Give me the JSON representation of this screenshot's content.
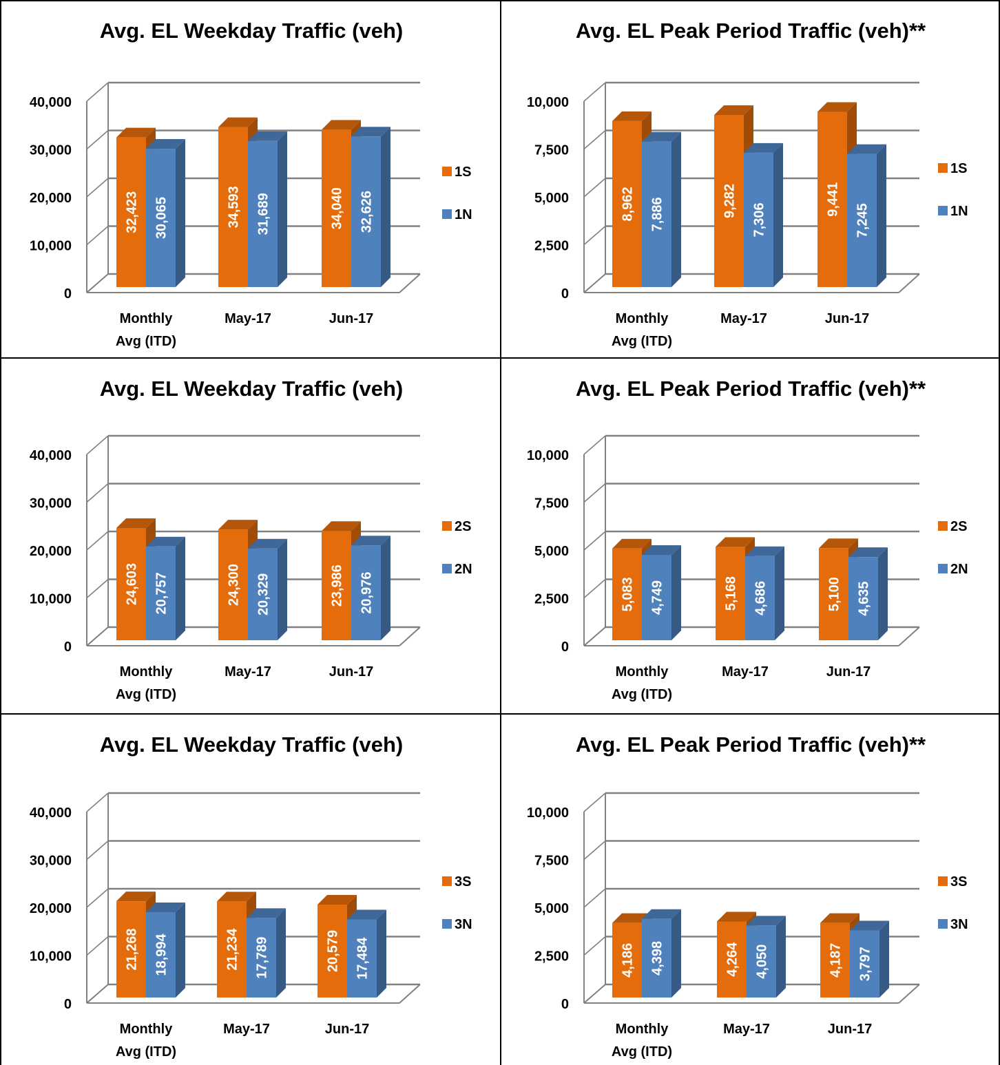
{
  "colors": {
    "south": "#E46C0A",
    "north": "#4F81BD",
    "grid": "#808080"
  },
  "chart_data": [
    {
      "type": "bar",
      "title": "Avg. EL Weekday Traffic (veh)",
      "categories": [
        "Monthly Avg (ITD)",
        "May-17",
        "Jun-17"
      ],
      "category_lines": [
        [
          "Monthly",
          "Avg (ITD)"
        ],
        [
          "May-17"
        ],
        [
          "Jun-17"
        ]
      ],
      "series": [
        {
          "name": "1S",
          "values": [
            32423,
            34593,
            34040
          ]
        },
        {
          "name": "1N",
          "values": [
            30065,
            31689,
            32626
          ]
        }
      ],
      "value_labels": [
        [
          "32,423",
          "34,593",
          "34,040"
        ],
        [
          "30,065",
          "31,689",
          "32,626"
        ]
      ],
      "ylim": [
        0,
        40000
      ],
      "yticks": [
        0,
        10000,
        20000,
        30000,
        40000
      ],
      "ytick_labels": [
        "0",
        "10,000",
        "20,000",
        "30,000",
        "40,000"
      ],
      "grid": true,
      "legend": "right"
    },
    {
      "type": "bar",
      "title": "Avg. EL Peak Period Traffic (veh)**",
      "categories": [
        "Monthly Avg (ITD)",
        "May-17",
        "Jun-17"
      ],
      "category_lines": [
        [
          "Monthly",
          "Avg (ITD)"
        ],
        [
          "May-17"
        ],
        [
          "Jun-17"
        ]
      ],
      "series": [
        {
          "name": "1S",
          "values": [
            8962,
            9282,
            9441
          ]
        },
        {
          "name": "1N",
          "values": [
            7886,
            7306,
            7245
          ]
        }
      ],
      "value_labels": [
        [
          "8,962",
          "9,282",
          "9,441"
        ],
        [
          "7,886",
          "7,306",
          "7,245"
        ]
      ],
      "ylim": [
        0,
        10000
      ],
      "yticks": [
        0,
        2500,
        5000,
        7500,
        10000
      ],
      "ytick_labels": [
        "0",
        "2,500",
        "5,000",
        "7,500",
        "10,000"
      ],
      "grid": true,
      "legend": "right"
    },
    {
      "type": "bar",
      "title": "Avg. EL Weekday Traffic (veh)",
      "categories": [
        "Monthly Avg (ITD)",
        "May-17",
        "Jun-17"
      ],
      "category_lines": [
        [
          "Monthly",
          "Avg (ITD)"
        ],
        [
          "May-17"
        ],
        [
          "Jun-17"
        ]
      ],
      "series": [
        {
          "name": "2S",
          "values": [
            24603,
            24300,
            23986
          ]
        },
        {
          "name": "2N",
          "values": [
            20757,
            20329,
            20976
          ]
        }
      ],
      "value_labels": [
        [
          "24,603",
          "24,300",
          "23,986"
        ],
        [
          "20,757",
          "20,329",
          "20,976"
        ]
      ],
      "ylim": [
        0,
        40000
      ],
      "yticks": [
        0,
        10000,
        20000,
        30000,
        40000
      ],
      "ytick_labels": [
        "0",
        "10,000",
        "20,000",
        "30,000",
        "40,000"
      ],
      "grid": true,
      "legend": "right"
    },
    {
      "type": "bar",
      "title": "Avg. EL Peak Period Traffic (veh)**",
      "categories": [
        "Monthly Avg (ITD)",
        "May-17",
        "Jun-17"
      ],
      "category_lines": [
        [
          "Monthly",
          "Avg (ITD)"
        ],
        [
          "May-17"
        ],
        [
          "Jun-17"
        ]
      ],
      "series": [
        {
          "name": "2S",
          "values": [
            5083,
            5168,
            5100
          ]
        },
        {
          "name": "2N",
          "values": [
            4749,
            4686,
            4635
          ]
        }
      ],
      "value_labels": [
        [
          "5,083",
          "5,168",
          "5,100"
        ],
        [
          "4,749",
          "4,686",
          "4,635"
        ]
      ],
      "ylim": [
        0,
        10000
      ],
      "yticks": [
        0,
        2500,
        5000,
        7500,
        10000
      ],
      "ytick_labels": [
        "0",
        "2,500",
        "5,000",
        "7,500",
        "10,000"
      ],
      "grid": true,
      "legend": "right"
    },
    {
      "type": "bar",
      "title": "Avg. EL Weekday Traffic (veh)",
      "categories": [
        "Monthly Avg (ITD)",
        "May-17",
        "Jun-17"
      ],
      "category_lines": [
        [
          "Monthly",
          "Avg (ITD)"
        ],
        [
          "May-17"
        ],
        [
          "Jun-17"
        ]
      ],
      "series": [
        {
          "name": "3S",
          "values": [
            21268,
            21234,
            20579
          ]
        },
        {
          "name": "3N",
          "values": [
            18994,
            17789,
            17484
          ]
        }
      ],
      "value_labels": [
        [
          "21,268",
          "21,234",
          "20,579"
        ],
        [
          "18,994",
          "17,789",
          "17,484"
        ]
      ],
      "ylim": [
        0,
        40000
      ],
      "yticks": [
        0,
        10000,
        20000,
        30000,
        40000
      ],
      "ytick_labels": [
        "0",
        "10,000",
        "20,000",
        "30,000",
        "40,000"
      ],
      "grid": true,
      "legend": "right"
    },
    {
      "type": "bar",
      "title": "Avg. EL Peak Period Traffic (veh)**",
      "categories": [
        "Monthly Avg (ITD)",
        "May-17",
        "Jun-17"
      ],
      "category_lines": [
        [
          "Monthly",
          "Avg (ITD)"
        ],
        [
          "May-17"
        ],
        [
          "Jun-17"
        ]
      ],
      "series": [
        {
          "name": "3S",
          "values": [
            4186,
            4264,
            4187
          ]
        },
        {
          "name": "3N",
          "values": [
            4398,
            4050,
            3797
          ]
        }
      ],
      "value_labels": [
        [
          "4,186",
          "4,264",
          "4,187"
        ],
        [
          "4,398",
          "4,050",
          "3,797"
        ]
      ],
      "ylim": [
        0,
        10000
      ],
      "yticks": [
        0,
        2500,
        5000,
        7500,
        10000
      ],
      "ytick_labels": [
        "0",
        "2,500",
        "5,000",
        "7,500",
        "10,000"
      ],
      "grid": true,
      "legend": "right"
    }
  ]
}
